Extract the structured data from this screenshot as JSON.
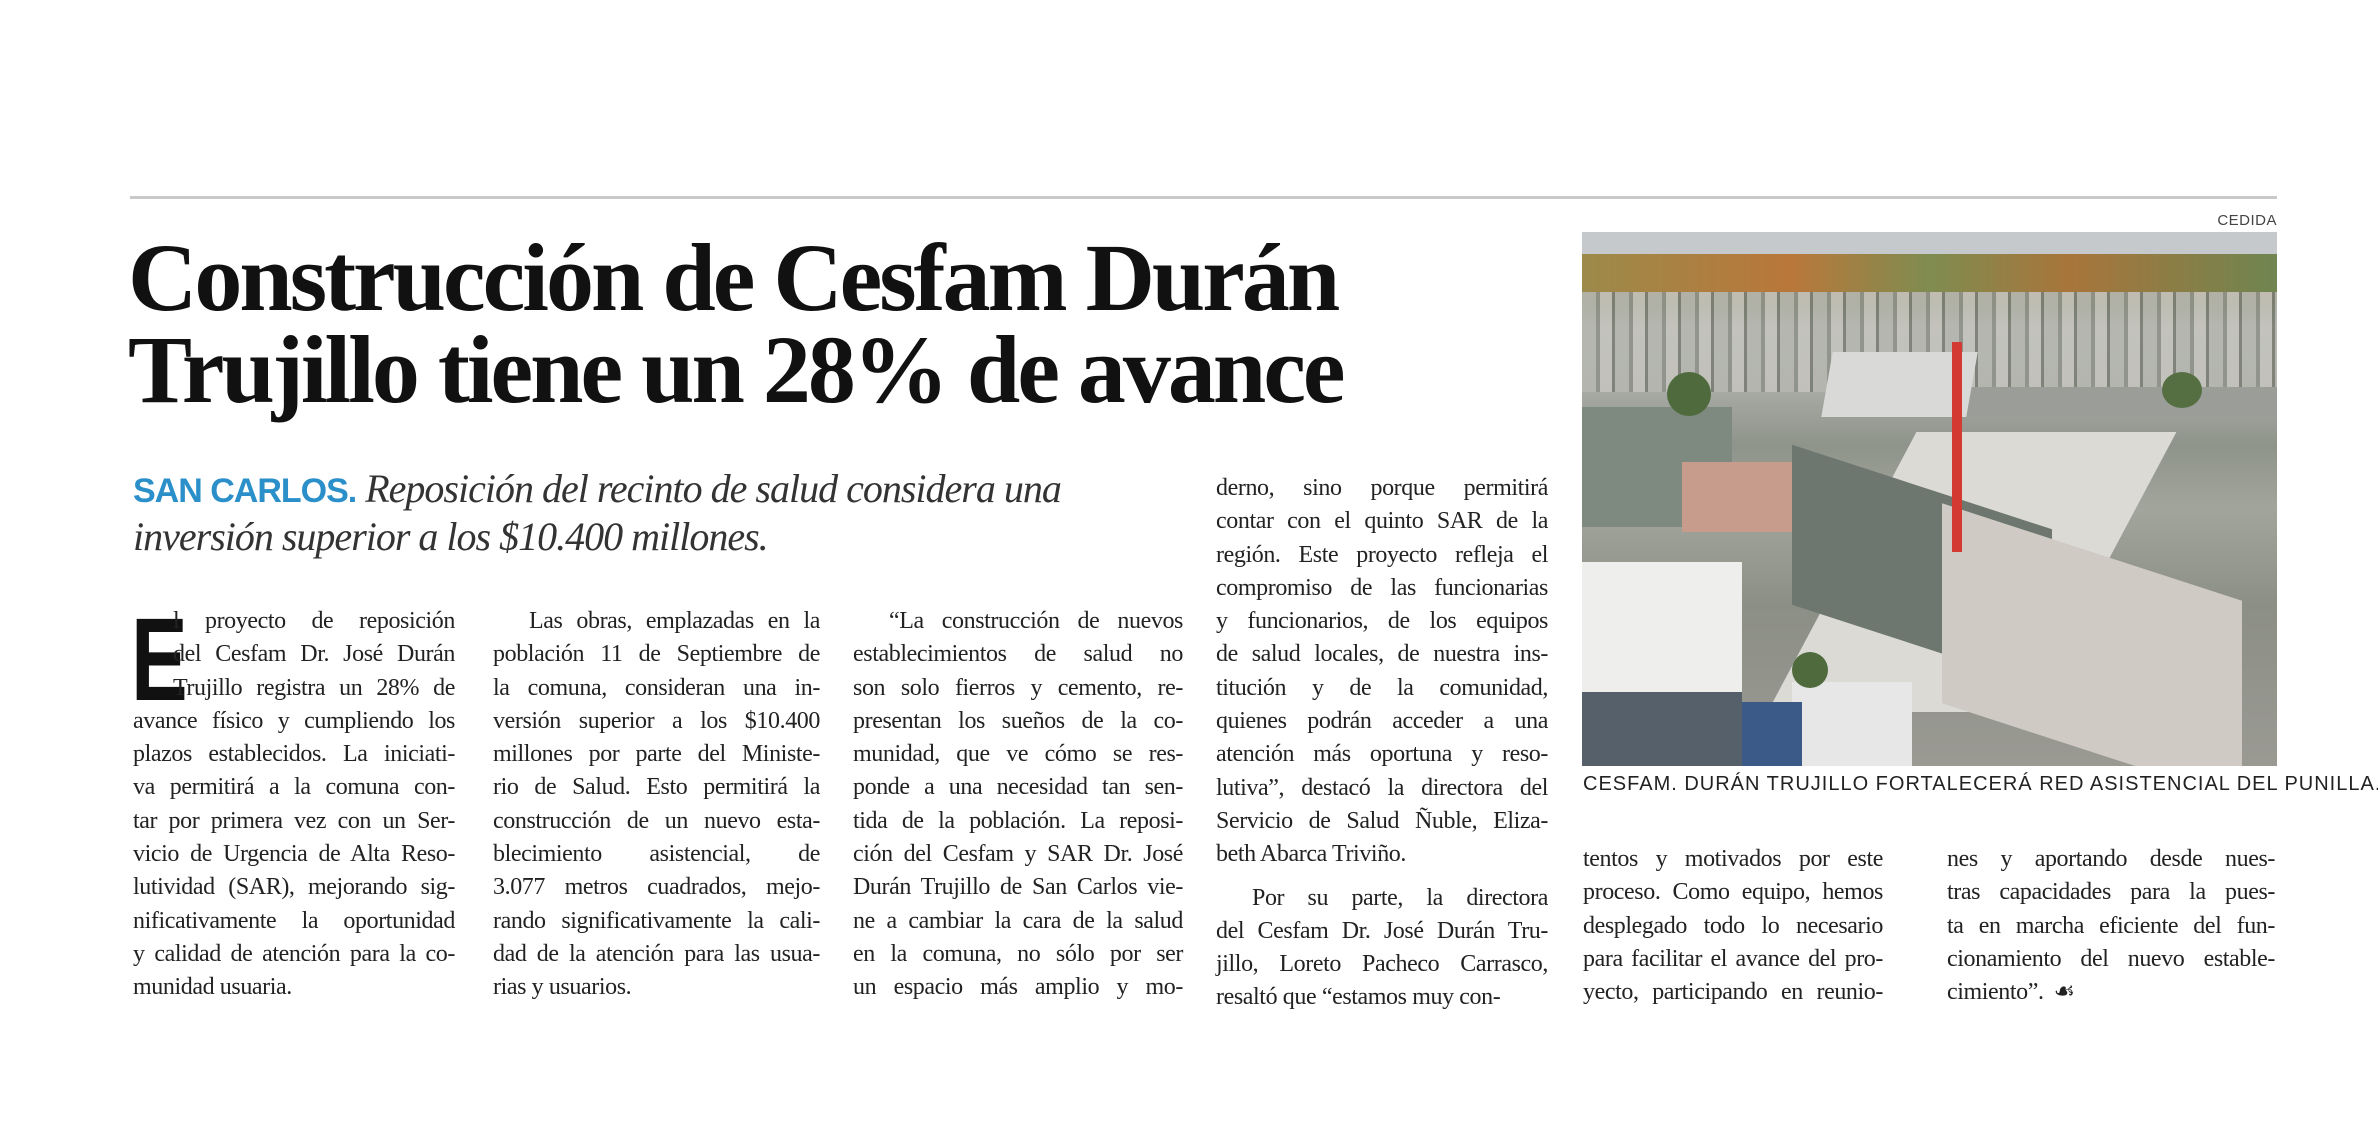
{
  "article": {
    "headline": "Construcción de Cesfam Durán Trujillo tiene un 28% de avance",
    "kicker": "SAN CARLOS.",
    "subtitle": "Reposición del recinto de salud considera una inversión superior a los $10.400 millones.",
    "dropcap": "E",
    "photo_credit": "CEDIDA",
    "photo_caption": "CESFAM. DURÁN TRUJILLO FORTALECERÁ RED ASISTENCIAL DEL PUNILLA.",
    "end_mark": "☙",
    "columns": [
      [
        "l proyecto de reposición",
        "del Cesfam Dr. José Durán",
        "Trujillo registra un 28% de",
        "avance físico y cumpliendo los",
        "plazos establecidos. La iniciati-",
        "va permitirá a la comuna con-",
        "tar por primera vez con un Ser-",
        "vicio de Urgencia de Alta Reso-",
        "lutividad (SAR), mejorando sig-",
        "nificativamente la oportunidad",
        "y calidad de atención para la co-",
        "munidad usuaria."
      ],
      [
        "Las obras, emplazadas en la",
        "población 11 de Septiembre de",
        "la comuna, consideran una in-",
        "versión superior a los $10.400",
        "millones por parte del Ministe-",
        "rio de Salud. Esto permitirá la",
        "construcción de un nuevo esta-",
        "blecimiento asistencial, de",
        "3.077 metros cuadrados, mejo-",
        "rando significativamente la cali-",
        "dad de la atención para las usua-",
        "rias y usuarios."
      ],
      [
        "“La construcción de nuevos",
        "establecimientos de salud no",
        "son solo fierros y cemento, re-",
        "presentan los sueños de la co-",
        "munidad, que ve cómo se res-",
        "ponde a una necesidad tan sen-",
        "tida de la población. La reposi-",
        "ción del Cesfam y SAR Dr. José",
        "Durán Trujillo de San Carlos vie-",
        "ne a cambiar la cara de la salud",
        "en la comuna, no sólo por ser",
        "un espacio más amplio y mo-"
      ],
      [
        "derno, sino porque permitirá",
        "contar con el quinto SAR de la",
        "región. Este proyecto refleja el",
        "compromiso de las funcionarias",
        "y funcionarios, de los equipos",
        "de salud locales, de nuestra ins-",
        "titución y de la comunidad,",
        "quienes podrán acceder a una",
        "atención más oportuna y reso-",
        "lutiva”, destacó la directora del",
        "Servicio de Salud Ñuble, Eliza-",
        "beth Abarca Triviño.",
        "Por su parte, la directora",
        "del Cesfam Dr. José Durán Tru-",
        "jillo, Loreto Pacheco Carrasco,",
        "resaltó que “estamos muy con-"
      ],
      [
        "tentos y motivados por este",
        "proceso. Como equipo, hemos",
        "desplegado todo lo necesario",
        "para facilitar el avance del pro-",
        "yecto, participando en reunio-"
      ],
      [
        "nes y aportando desde nues-",
        "tras capacidades para la pues-",
        "ta en marcha eficiente del fun-",
        "cionamiento del nuevo estable-",
        "cimiento”."
      ]
    ]
  },
  "colors": {
    "kicker": "#2b8fc9",
    "rule": "#c9c9c9",
    "crane": "#d23a32"
  }
}
